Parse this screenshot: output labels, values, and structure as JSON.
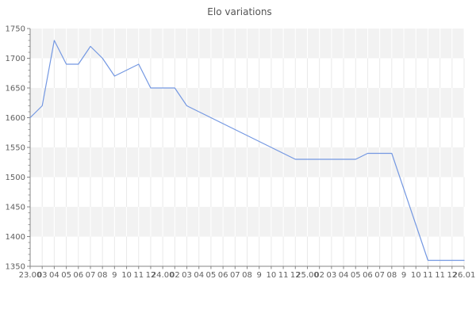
{
  "chart_data": {
    "type": "line",
    "title": "Elo variations",
    "xlabel": "",
    "ylabel": "",
    "x_tick_labels": [
      "23.00",
      "03",
      "04",
      "05",
      "06",
      "07",
      "08",
      "9",
      "10",
      "11",
      "12",
      "24.00",
      "02",
      "03",
      "04",
      "05",
      "06",
      "07",
      "08",
      "9",
      "10",
      "11",
      "12",
      "25.00",
      "02",
      "03",
      "04",
      "05",
      "06",
      "07",
      "08",
      "9",
      "10",
      "11",
      "11",
      "12",
      "26.01"
    ],
    "values": [
      1600,
      1620,
      1730,
      1690,
      1690,
      1720,
      1700,
      1670,
      1680,
      1690,
      1650,
      1650,
      1650,
      1620,
      1610,
      1600,
      1590,
      1580,
      1570,
      1560,
      1550,
      1540,
      1530,
      1530,
      1530,
      1530,
      1530,
      1530,
      1540,
      1540,
      1540,
      1480,
      1420,
      1360,
      1360,
      1360,
      1360
    ],
    "ylim": [
      1350,
      1750
    ],
    "y_ticks": [
      1750,
      1700,
      1650,
      1600,
      1550,
      1500,
      1450,
      1400,
      1350
    ],
    "y_minor_step": 10,
    "gray_bands": [
      [
        1700,
        1750
      ],
      [
        1600,
        1650
      ],
      [
        1500,
        1550
      ],
      [
        1400,
        1450
      ]
    ],
    "white_bands": [
      [
        1650,
        1700
      ],
      [
        1550,
        1600
      ],
      [
        1450,
        1500
      ],
      [
        1350,
        1400
      ]
    ],
    "legend_position": "none",
    "grid": "vertical-gridlines-and-horizontal-alternating-bands",
    "colors": {
      "line": "#7498e2",
      "band": "#f2f2f2",
      "grid_on_white": "#e9e9e9",
      "grid_on_band": "#ffffff",
      "axis": "#858585",
      "text": "#5f5f5f",
      "title": "#555555"
    }
  }
}
